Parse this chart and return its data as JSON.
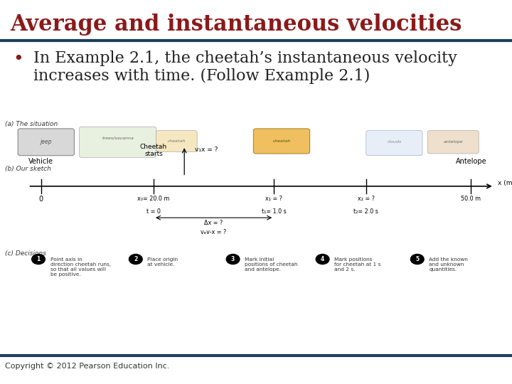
{
  "title": "Average and instantaneous velocities",
  "title_color": "#8B1A1A",
  "title_fontsize": 22,
  "divider_color": "#1C3F5E",
  "divider_linewidth": 3,
  "bullet_text_line1": "In Example 2.1, the cheetah’s instantaneous velocity",
  "bullet_text_line2": "increases with time. (Follow Example 2.1)",
  "bullet_color": "#8B1A1A",
  "bullet_fontsize": 16,
  "text_color": "#222222",
  "copyright_text": "Copyright © 2012 Pearson Education Inc.",
  "copyright_fontsize": 8,
  "background_color": "#FFFFFF",
  "footer_divider_color": "#1C3F5E",
  "footer_divider_linewidth": 3,
  "diagram_label_a": "(a) The situation",
  "diagram_label_b": "(b) Our sketch",
  "diagram_label_c": "(c) Decisions",
  "sketch_labels": {
    "vehicle": "Vehicle",
    "cheetah_starts": "Cheetah\nstarts",
    "v1x": "v₁x = ?",
    "antelope": "Antelope",
    "x0": "x₀= 20.0 m",
    "t0": "t = 0",
    "x1": "x₁ = ?",
    "t1": "t₁= 1.0 s",
    "x2": "x₂ = ?",
    "t2": "t₂= 2.0 s",
    "delta_x": "Δx = ?",
    "vev_x": "vₑv-x = ?",
    "x_axis": "x (m)",
    "x_tick": "50.0 m"
  },
  "decisions": [
    "Point axis in\ndirection cheetah runs,\nso that all values will\nbe positive.",
    "Place origin\nat vehicle.",
    "Mark initial\npositions of cheetah\nand antelope.",
    "Mark positions\nfor cheetah at 1 s\nand 2 s.",
    "Add the known\nand unknown\nquantities."
  ]
}
